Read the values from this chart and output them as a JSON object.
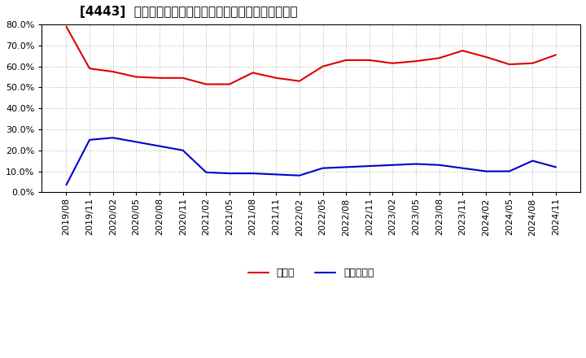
{
  "title": "[4443]  現預金、有利子負債の総資産に対する比率の推移",
  "x_labels": [
    "2019/08",
    "2019/11",
    "2020/02",
    "2020/05",
    "2020/08",
    "2020/11",
    "2021/02",
    "2021/05",
    "2021/08",
    "2021/11",
    "2022/02",
    "2022/05",
    "2022/08",
    "2022/11",
    "2023/02",
    "2023/05",
    "2023/08",
    "2023/11",
    "2024/02",
    "2024/05",
    "2024/08",
    "2024/11"
  ],
  "cash_values": [
    79.0,
    59.0,
    57.5,
    55.0,
    54.5,
    54.5,
    51.5,
    51.5,
    57.0,
    54.5,
    53.0,
    60.0,
    63.0,
    63.0,
    61.5,
    62.5,
    64.0,
    67.5,
    64.5,
    61.0,
    61.5,
    65.5
  ],
  "debt_values": [
    3.5,
    25.0,
    26.0,
    24.0,
    22.0,
    20.0,
    9.5,
    9.0,
    9.0,
    8.5,
    8.0,
    11.5,
    12.0,
    12.5,
    13.0,
    13.5,
    13.0,
    11.5,
    10.0,
    10.0,
    15.0,
    12.0
  ],
  "cash_color": "#dd0000",
  "debt_color": "#0000cc",
  "background_color": "#ffffff",
  "plot_bg_color": "#ffffff",
  "grid_color": "#aaaaaa",
  "ylim": [
    0.0,
    80.0
  ],
  "yticks": [
    0.0,
    10.0,
    20.0,
    30.0,
    40.0,
    50.0,
    60.0,
    70.0,
    80.0
  ],
  "legend_cash": "現預金",
  "legend_debt": "有利子負債",
  "title_fontsize": 11,
  "axis_fontsize": 8,
  "legend_fontsize": 9
}
